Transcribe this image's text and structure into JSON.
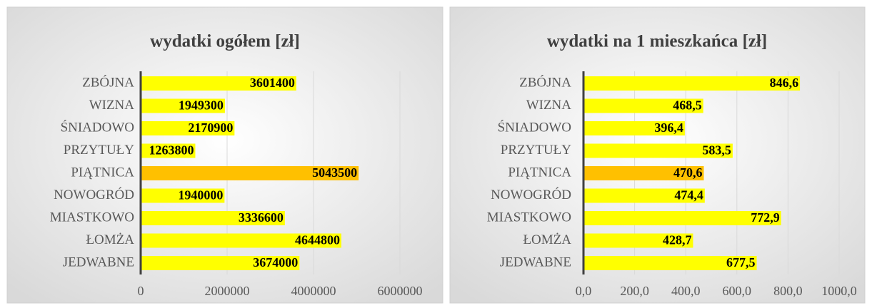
{
  "chart_data": [
    {
      "type": "bar",
      "orientation": "horizontal",
      "title": "wydatki ogółem [zł]",
      "categories": [
        "ZBÓJNA",
        "WIZNA",
        "ŚNIADOWO",
        "PRZYTUŁY",
        "PIĄTNICA",
        "NOWOGRÓD",
        "MIASTKOWO",
        "ŁOMŻA",
        "JEDWABNE"
      ],
      "values": [
        3601400,
        1949300,
        2170900,
        1263800,
        5043500,
        1940000,
        3336600,
        4644800,
        3674000
      ],
      "colors": [
        "#ffff00",
        "#ffff00",
        "#ffff00",
        "#ffff00",
        "#ffc000",
        "#ffff00",
        "#ffff00",
        "#ffff00",
        "#ffff00"
      ],
      "xlim": [
        0,
        6000000
      ],
      "xticks": [
        0,
        2000000,
        4000000,
        6000000
      ],
      "grid": true
    },
    {
      "type": "bar",
      "orientation": "horizontal",
      "title": "wydatki na 1 mieszkańca [zł]",
      "categories": [
        "ZBÓJNA",
        "WIZNA",
        "ŚNIADOWO",
        "PRZYTUŁY",
        "PIĄTNICA",
        "NOWOGRÓD",
        "MIASTKOWO",
        "ŁOMŻA",
        "JEDWABNE"
      ],
      "values": [
        846.6,
        468.5,
        396.4,
        583.5,
        470.6,
        474.4,
        772.9,
        428.7,
        677.5
      ],
      "value_labels": [
        "846,6",
        "468,5",
        "396,4",
        "583,5",
        "470,6",
        "474,4",
        "772,9",
        "428,7",
        "677,5"
      ],
      "colors": [
        "#ffff00",
        "#ffff00",
        "#ffff00",
        "#ffff00",
        "#ffc000",
        "#ffff00",
        "#ffff00",
        "#ffff00",
        "#ffff00"
      ],
      "xlim": [
        0,
        1000
      ],
      "xticks": [
        {
          "value": 0,
          "label": "0,0"
        },
        {
          "value": 200,
          "label": "200,0"
        },
        {
          "value": 400,
          "label": "400,0"
        },
        {
          "value": 600,
          "label": "600,0"
        },
        {
          "value": 800,
          "label": "800,0"
        },
        {
          "value": 1000,
          "label": "1000,0"
        }
      ],
      "grid": true
    }
  ]
}
